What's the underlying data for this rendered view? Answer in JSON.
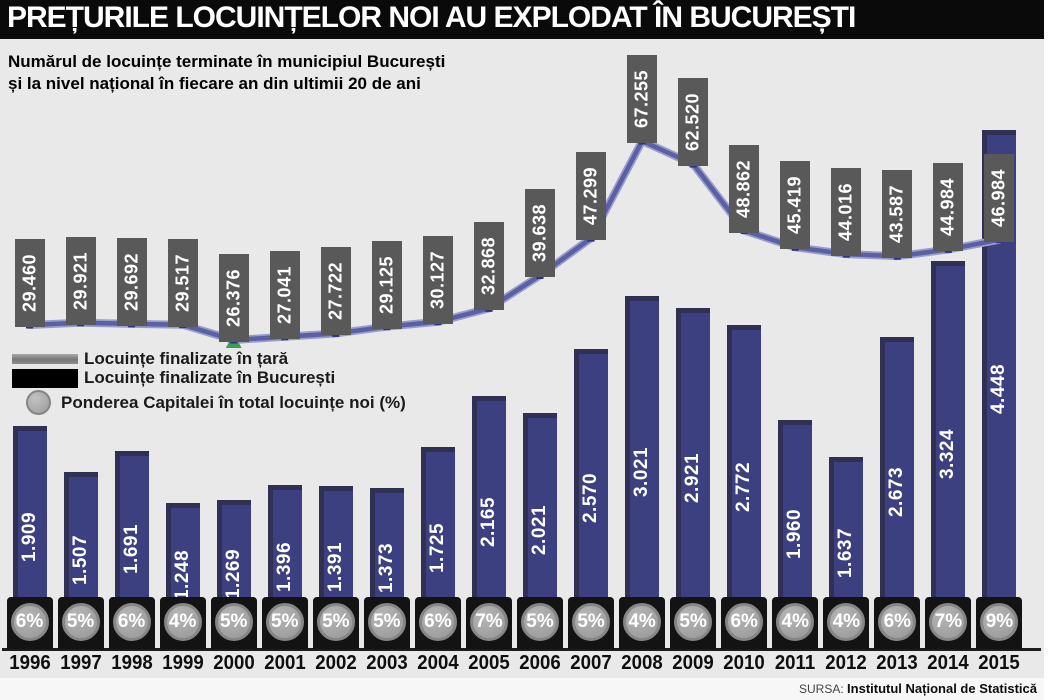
{
  "title": "PREȚURILE LOCUINȚELOR NOI AU EXPLODAT ÎN BUCUREȘTI",
  "subtitle_line1": "Numărul de locuințe terminate în municipiul București",
  "subtitle_line2": "și la nivel național în fiecare an din ultimii 20 de ani",
  "legend": {
    "items": [
      {
        "label": "Locuințe finalizate în țară"
      },
      {
        "label": "Locuințe finalizate în București"
      },
      {
        "label": "Ponderea Capitalei în total locuințe noi (%)"
      }
    ]
  },
  "source": {
    "prefix": "SURSA:",
    "name": "Institutul Național de Statistică"
  },
  "colors": {
    "background": "#e9e9e9",
    "title_bg": "#0a0a0a",
    "national_gray": "#595959",
    "bucharest_blue": "#3c3f80",
    "line": "#5a5fa6",
    "line_halo": "#999dc9",
    "marker": "#2d3282",
    "pedestal": "#131313",
    "badge_gray": "#9e9e9e",
    "axis": "#1c1c1c"
  },
  "chart_data": {
    "type": "bar",
    "title": "PREȚURILE LOCUINȚELOR NOI AU EXPLODAT ÎN BUCUREȘTI",
    "subtitle": "Numărul de locuințe terminate în municipiul București și la nivel național în fiecare an din ultimii 20 de ani",
    "categories": [
      "1996",
      "1997",
      "1998",
      "1999",
      "2000",
      "2001",
      "2002",
      "2003",
      "2004",
      "2005",
      "2006",
      "2007",
      "2008",
      "2009",
      "2010",
      "2011",
      "2012",
      "2013",
      "2014",
      "2015"
    ],
    "series": [
      {
        "name": "Locuințe finalizate în țară",
        "style": "line-with-hanging-labels",
        "values": [
          29460,
          29921,
          29692,
          29517,
          26376,
          27041,
          27722,
          29125,
          30127,
          32868,
          39638,
          47299,
          67255,
          62520,
          48862,
          45419,
          44016,
          43587,
          44984,
          46984
        ],
        "labels": [
          "29.460",
          "29.921",
          "29.692",
          "29.517",
          "26.376",
          "27.041",
          "27.722",
          "29.125",
          "30.127",
          "32.868",
          "39.638",
          "47.299",
          "67.255",
          "62.520",
          "48.862",
          "45.419",
          "44.016",
          "43.587",
          "44.984",
          "46.984"
        ]
      },
      {
        "name": "Locuințe finalizate în București",
        "style": "bar",
        "values": [
          1909,
          1507,
          1691,
          1248,
          1269,
          1396,
          1391,
          1373,
          1725,
          2165,
          2021,
          2570,
          3021,
          2921,
          2772,
          1960,
          1637,
          2673,
          3324,
          4448
        ],
        "labels": [
          "1.909",
          "1.507",
          "1.691",
          "1.248",
          "1.269",
          "1.396",
          "1.391",
          "1.373",
          "1.725",
          "2.165",
          "2.021",
          "2.570",
          "3.021",
          "2.921",
          "2.772",
          "1.960",
          "1.637",
          "2.673",
          "3.324",
          "4.448"
        ]
      },
      {
        "name": "Ponderea Capitalei în total locuințe noi (%)",
        "style": "badge",
        "values": [
          6,
          5,
          6,
          4,
          5,
          5,
          5,
          5,
          6,
          7,
          5,
          5,
          4,
          5,
          6,
          4,
          4,
          6,
          7,
          9
        ],
        "labels": [
          "6%",
          "5%",
          "6%",
          "4%",
          "5%",
          "5%",
          "5%",
          "5%",
          "6%",
          "7%",
          "5%",
          "5%",
          "4%",
          "5%",
          "6%",
          "4%",
          "4%",
          "6%",
          "7%",
          "9%"
        ]
      }
    ],
    "legend_position": "middle-left",
    "grid": false,
    "ylim_national": [
      0,
      70000
    ],
    "ylim_bucharest": [
      0,
      4500
    ]
  }
}
